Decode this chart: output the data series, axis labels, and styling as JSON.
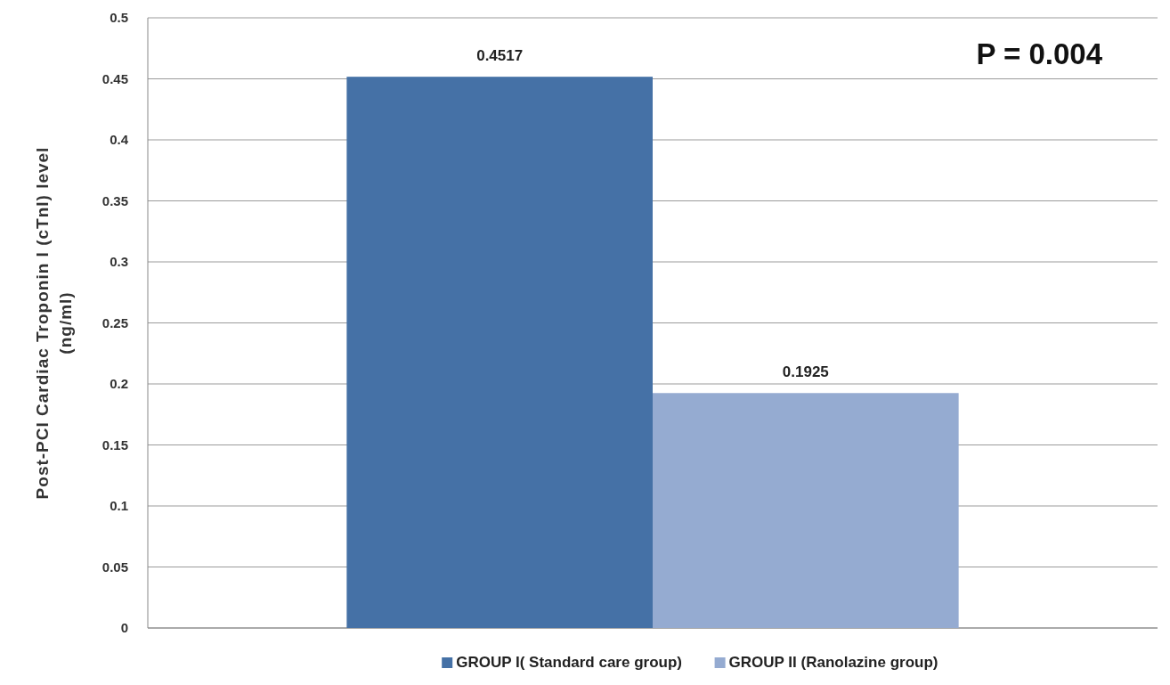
{
  "chart_data": {
    "type": "bar",
    "categories": [
      null
    ],
    "ylabel": "Post-PCI Cardiac Troponin I (cTnI) level (ng/ml)",
    "series": [
      {
        "name": "GROUP I( Standard care group)",
        "color": "#4571a6",
        "values": [
          0.4517
        ]
      },
      {
        "name": "GROUP II (Ranolazine group)",
        "color": "#95abd1",
        "values": [
          0.1925
        ]
      }
    ],
    "ylim": [
      0,
      0.5
    ],
    "yticks": [
      0,
      0.05,
      0.1,
      0.15,
      0.2,
      0.25,
      0.3,
      0.35,
      0.4,
      0.45,
      0.5
    ],
    "grid": "y",
    "legend": "bottom",
    "data_labels": true,
    "annotations": [
      "P = 0.004"
    ]
  }
}
